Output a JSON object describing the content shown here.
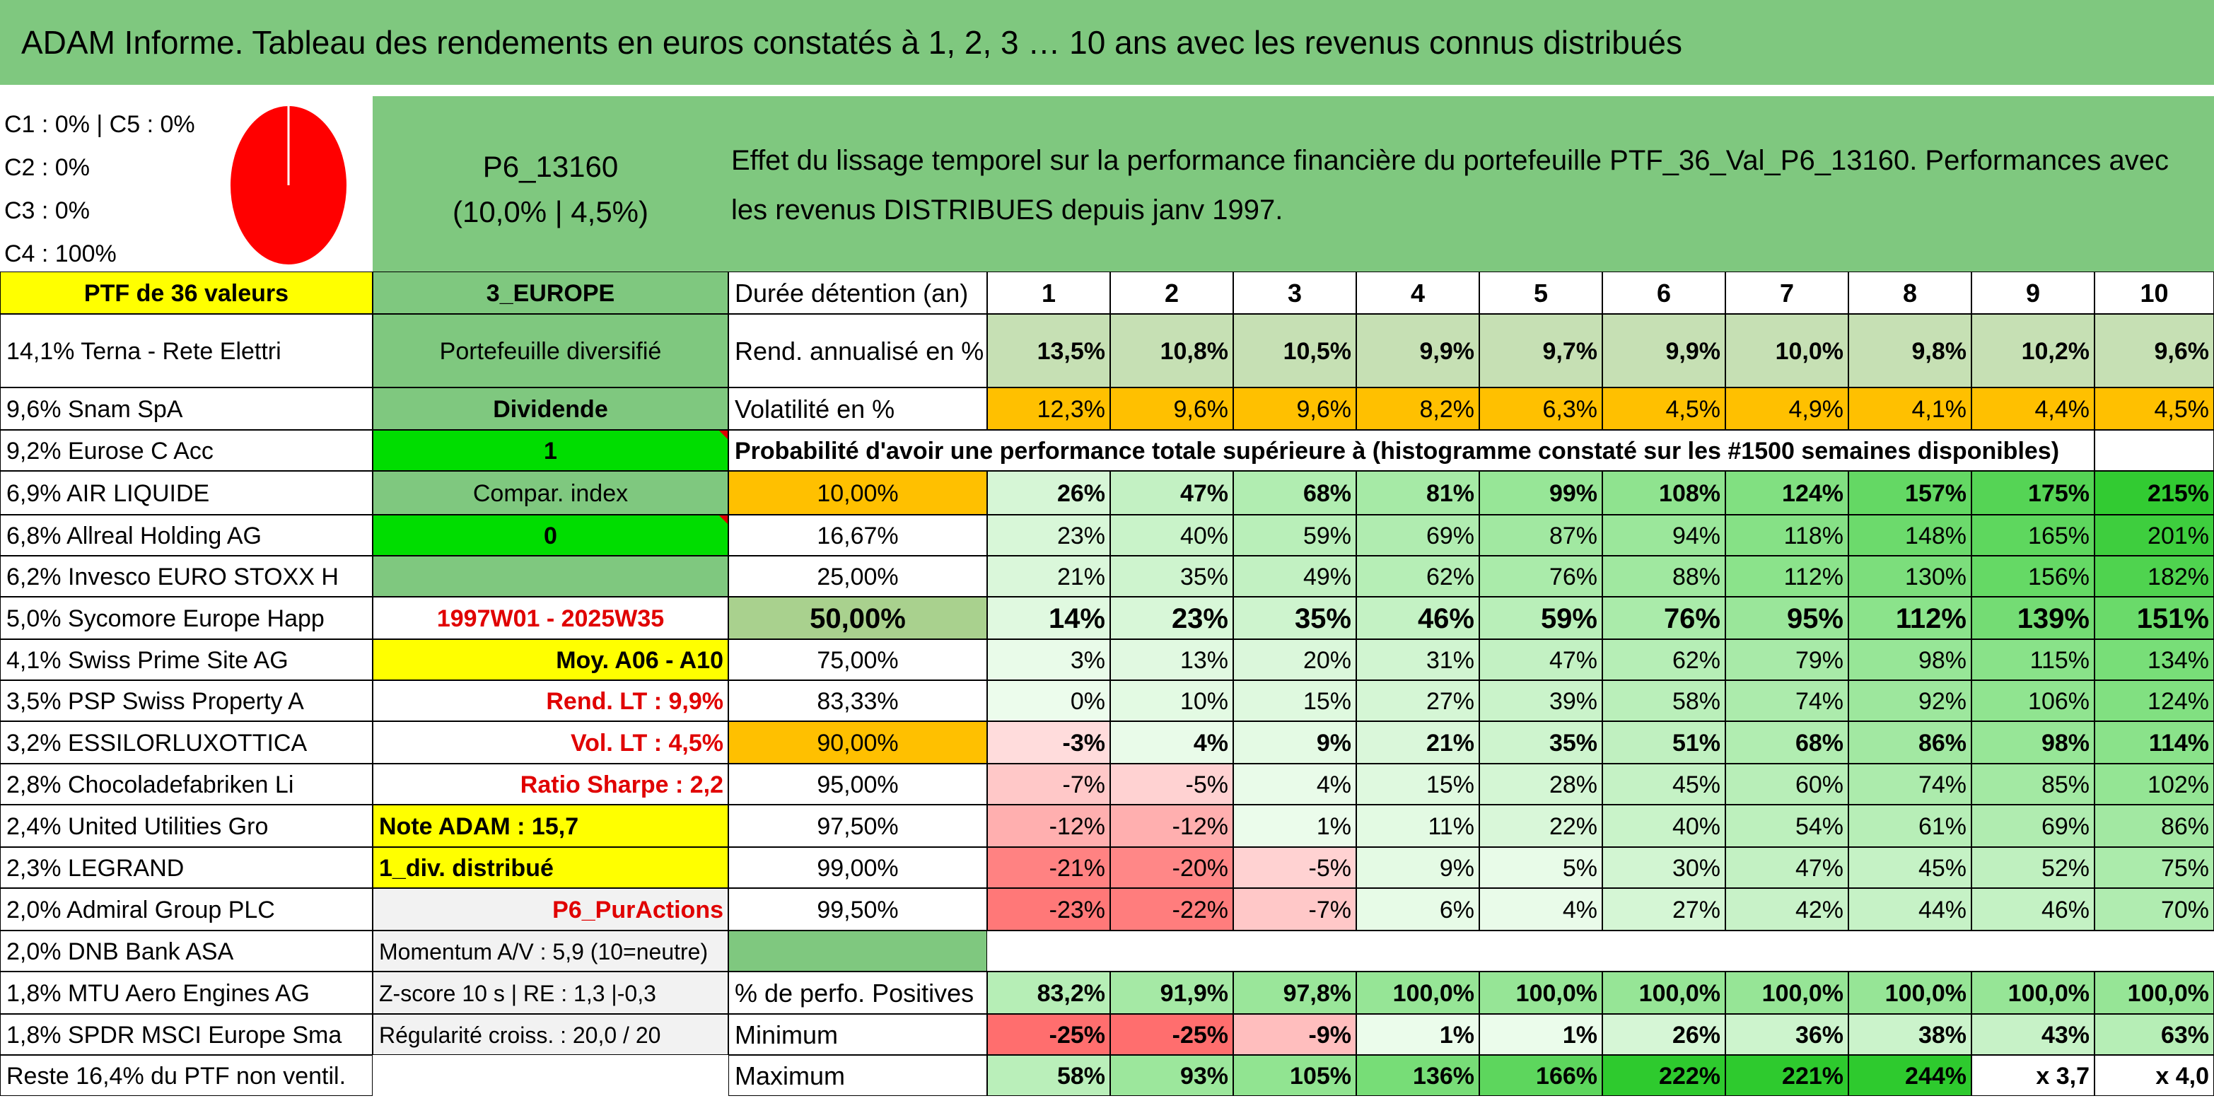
{
  "title": "ADAM Informe. Tableau des rendements en euros constatés à 1, 2, 3 … 10 ans avec les revenus connus distribués",
  "pie": {
    "legend": [
      "C1 : 0% | C5 : 0%",
      "C2 : 0%",
      "C3 : 0%",
      "C4 : 100%"
    ],
    "color": "#ff0000"
  },
  "code": {
    "line1": "P6_13160",
    "line2": "(10,0% | 4,5%)"
  },
  "effect_text": "Effet du lissage temporel sur la performance financière du portefeuille PTF_36_Val_P6_13160. Performances avec les revenus DISTRIBUES depuis janv 1997.",
  "ptf_label": "PTF de 36 valeurs",
  "holdings": [
    "14,1% Terna - Rete Elettri",
    "9,6% Snam SpA",
    "9,2% Eurose C Acc",
    "6,9% AIR LIQUIDE",
    "6,8% Allreal Holding AG",
    "6,2% Invesco EURO STOXX H",
    "5,0% Sycomore Europe Happ",
    "4,1% Swiss Prime Site AG",
    "3,5% PSP Swiss Property A",
    "3,2% ESSILORLUXOTTICA",
    "2,8% Chocoladefabriken Li",
    "2,4% United Utilities Gro",
    "2,3% LEGRAND",
    "2,0% Admiral Group PLC",
    "2,0% DNB Bank ASA",
    "1,8% MTU Aero Engines AG",
    "1,8% SPDR MSCI Europe Sma",
    "Reste 16,4% du PTF non ventil."
  ],
  "info": [
    "3_EUROPE",
    "Portefeuille diversifié",
    "Dividende",
    "1",
    "Compar. index",
    "0",
    "",
    "1997W01 - 2025W35",
    "Moy. A06 - A10",
    "Rend. LT : 9,9%",
    "Vol. LT : 4,5%",
    "Ratio Sharpe : 2,2",
    "Note ADAM : 15,7",
    "1_div. distribué",
    "P6_PurActions",
    "Momentum A/V : 5,9 (10=neutre)",
    "Z-score 10 s | RE : 1,3 |-0,3",
    "Régularité croiss. : 20,0 / 20"
  ],
  "labels": {
    "duree": "Durée détention (an)",
    "rend": "Rend. annualisé en %",
    "vol": "Volatilité en %",
    "prob": "Probabilité d'avoir une performance totale supérieure à (histogramme constaté sur les #1500 semaines disponibles)",
    "pos": "% de perfo. Positives",
    "min": "Minimum",
    "max": "Maximum"
  },
  "years": [
    "1",
    "2",
    "3",
    "4",
    "5",
    "6",
    "7",
    "8",
    "9",
    "10"
  ],
  "rend": [
    "13,5%",
    "10,8%",
    "10,5%",
    "9,9%",
    "9,7%",
    "9,9%",
    "10,0%",
    "9,8%",
    "10,2%",
    "9,6%"
  ],
  "vol": [
    "12,3%",
    "9,6%",
    "9,6%",
    "8,2%",
    "6,3%",
    "4,5%",
    "4,9%",
    "4,1%",
    "4,4%",
    "4,5%"
  ],
  "prob_rows": [
    {
      "p": "10,00%",
      "v": [
        "26%",
        "47%",
        "68%",
        "81%",
        "99%",
        "108%",
        "124%",
        "157%",
        "175%",
        "215%"
      ]
    },
    {
      "p": "16,67%",
      "v": [
        "23%",
        "40%",
        "59%",
        "69%",
        "87%",
        "94%",
        "118%",
        "148%",
        "165%",
        "201%"
      ]
    },
    {
      "p": "25,00%",
      "v": [
        "21%",
        "35%",
        "49%",
        "62%",
        "76%",
        "88%",
        "112%",
        "130%",
        "156%",
        "182%"
      ]
    },
    {
      "p": "50,00%",
      "v": [
        "14%",
        "23%",
        "35%",
        "46%",
        "59%",
        "76%",
        "95%",
        "112%",
        "139%",
        "151%"
      ]
    },
    {
      "p": "75,00%",
      "v": [
        "3%",
        "13%",
        "20%",
        "31%",
        "47%",
        "62%",
        "79%",
        "98%",
        "115%",
        "134%"
      ]
    },
    {
      "p": "83,33%",
      "v": [
        "0%",
        "10%",
        "15%",
        "27%",
        "39%",
        "58%",
        "74%",
        "92%",
        "106%",
        "124%"
      ]
    },
    {
      "p": "90,00%",
      "v": [
        "-3%",
        "4%",
        "9%",
        "21%",
        "35%",
        "51%",
        "68%",
        "86%",
        "98%",
        "114%"
      ]
    },
    {
      "p": "95,00%",
      "v": [
        "-7%",
        "-5%",
        "4%",
        "15%",
        "28%",
        "45%",
        "60%",
        "74%",
        "85%",
        "102%"
      ]
    },
    {
      "p": "97,50%",
      "v": [
        "-12%",
        "-12%",
        "1%",
        "11%",
        "22%",
        "40%",
        "54%",
        "61%",
        "69%",
        "86%"
      ]
    },
    {
      "p": "99,00%",
      "v": [
        "-21%",
        "-20%",
        "-5%",
        "9%",
        "5%",
        "30%",
        "47%",
        "45%",
        "52%",
        "75%"
      ]
    },
    {
      "p": "99,50%",
      "v": [
        "-23%",
        "-22%",
        "-7%",
        "6%",
        "4%",
        "27%",
        "42%",
        "44%",
        "46%",
        "70%"
      ]
    }
  ],
  "pos": [
    "83,2%",
    "91,9%",
    "97,8%",
    "100,0%",
    "100,0%",
    "100,0%",
    "100,0%",
    "100,0%",
    "100,0%",
    "100,0%"
  ],
  "min": [
    "-25%",
    "-25%",
    "-9%",
    "1%",
    "1%",
    "26%",
    "36%",
    "38%",
    "43%",
    "63%"
  ],
  "max": [
    "58%",
    "93%",
    "105%",
    "136%",
    "166%",
    "222%",
    "221%",
    "244%",
    "x 3,7",
    "x 4,0"
  ],
  "colors": {
    "green_band": "#7fc87f",
    "yellow": "#ffff00",
    "orange": "#ffc000",
    "bright_green": "#00dd00",
    "light_grey": "#f2f2f2",
    "rend_bg": "#c6e0b4",
    "red_text": "#e00000"
  }
}
